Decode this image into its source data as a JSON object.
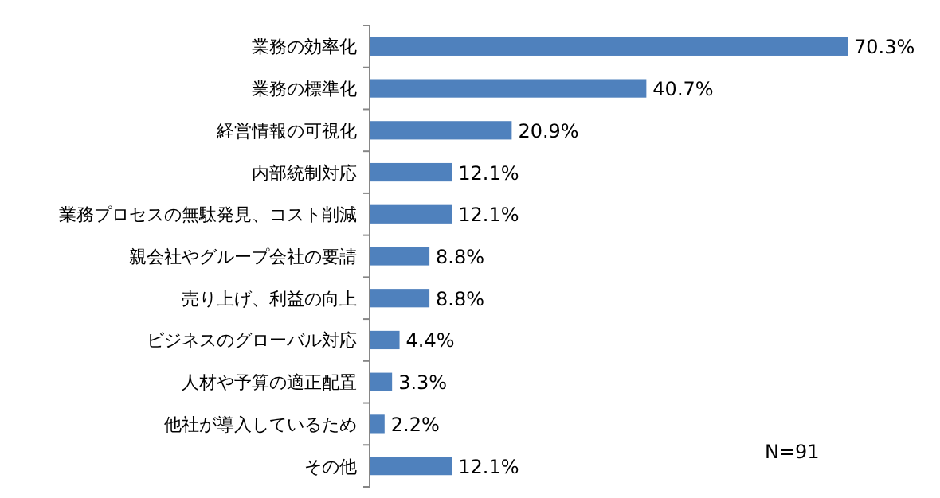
{
  "chart_data": {
    "type": "bar",
    "orientation": "horizontal",
    "categories": [
      "業務の効率化",
      "業務の標準化",
      "経営情報の可視化",
      "内部統制対応",
      "業務プロセスの無駄発見、コスト削減",
      "親会社やグループ会社の要請",
      "売り上げ、利益の向上",
      "ビジネスのグローバル対応",
      "人材や予算の適正配置",
      "他社が導入しているため",
      "その他"
    ],
    "values": [
      70.3,
      40.7,
      20.9,
      12.1,
      12.1,
      8.8,
      8.8,
      4.4,
      3.3,
      2.2,
      12.1
    ],
    "value_labels": [
      "70.3%",
      "40.7%",
      "20.9%",
      "12.1%",
      "12.1%",
      "8.8%",
      "8.8%",
      "4.4%",
      "3.3%",
      "2.2%",
      "12.1%"
    ],
    "color": "#4f81bd",
    "annotations": [
      "N=91"
    ]
  }
}
